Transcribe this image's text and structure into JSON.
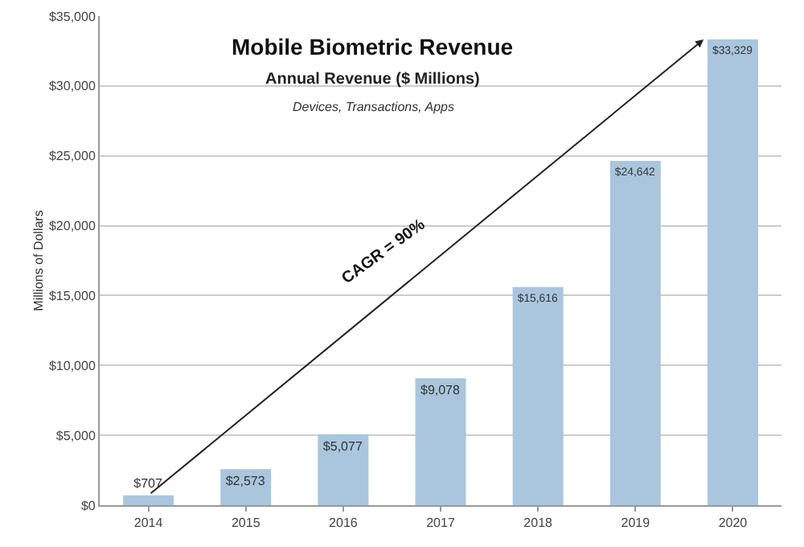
{
  "chart_data": {
    "type": "bar",
    "title": "Mobile Biometric Revenue",
    "subtitle": "Annual Revenue ($ Millions)",
    "annotations": [
      "Devices, Transactions, Apps",
      "CAGR = 90%"
    ],
    "ylabel": "Millions of Dollars",
    "categories": [
      "2014",
      "2015",
      "2016",
      "2017",
      "2018",
      "2019",
      "2020"
    ],
    "values": [
      707,
      2573,
      5077,
      9078,
      15616,
      24642,
      33329
    ],
    "value_labels": [
      "$707",
      "$2,573",
      "$5,077",
      "$9,078",
      "$15,616",
      "$24,642",
      "$33,329"
    ],
    "color": "#a9c6de",
    "ylim": [
      0,
      35000
    ],
    "yticks": [
      {
        "value": 0,
        "label": "$0"
      },
      {
        "value": 5000,
        "label": "$5,000"
      },
      {
        "value": 10000,
        "label": "$10,000"
      },
      {
        "value": 15000,
        "label": "$15,000"
      },
      {
        "value": 20000,
        "label": "$20,000"
      },
      {
        "value": 25000,
        "label": "$25,000"
      },
      {
        "value": 30000,
        "label": "$30,000"
      },
      {
        "value": 35000,
        "label": "$35,000"
      }
    ],
    "grid": "y"
  }
}
